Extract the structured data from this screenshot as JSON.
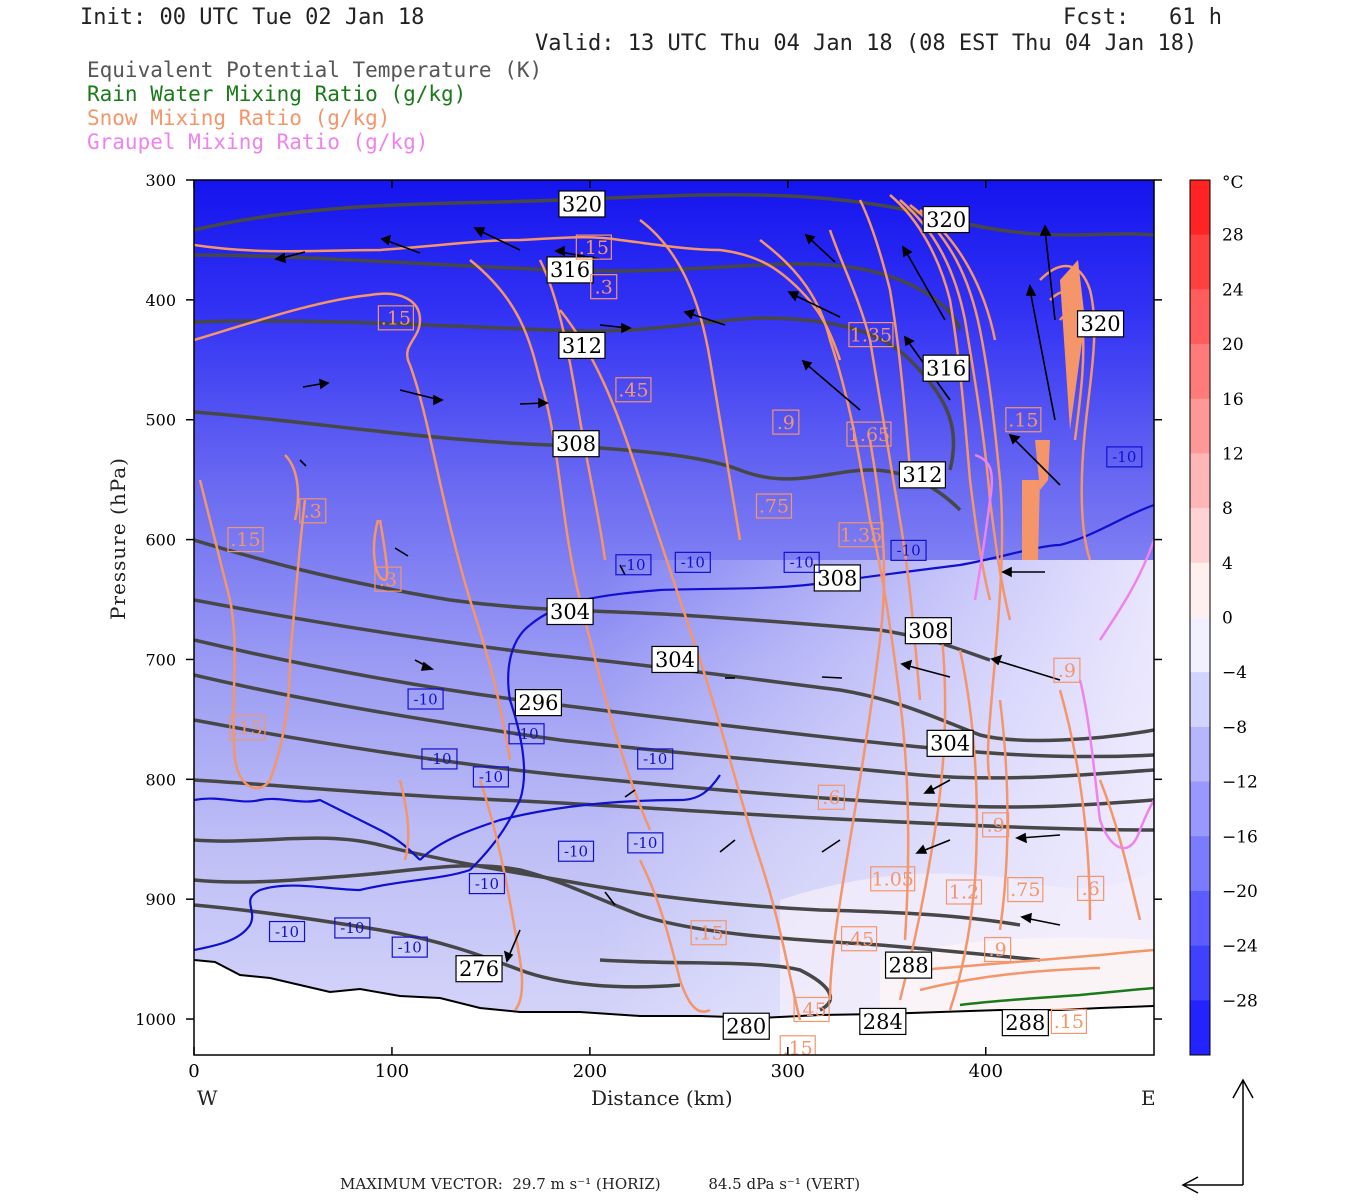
{
  "header": {
    "init": "Init: 00 UTC Tue 02 Jan 18",
    "fcst": "Fcst:   61 h",
    "valid": "Valid: 13 UTC Thu 04 Jan 18 (08 EST Thu 04 Jan 18)"
  },
  "legend": [
    {
      "text": "Equivalent Potential Temperature (K)",
      "color": "#555555"
    },
    {
      "text": "Rain Water Mixing Ratio (g/kg)",
      "color": "#1a7a1a"
    },
    {
      "text": "Snow Mixing Ratio (g/kg)",
      "color": "#f4956a"
    },
    {
      "text": "Graupel Mixing Ratio (g/kg)",
      "color": "#ee82ee"
    }
  ],
  "axes": {
    "ylabel": "Pressure (hPa)",
    "xlabel": "Distance (km)",
    "west": "W",
    "east": "E"
  },
  "colorbar": {
    "unit": "°C",
    "labels": [
      "28",
      "24",
      "20",
      "16",
      "12",
      "8",
      "4",
      "0",
      "−4",
      "−8",
      "−12",
      "−16",
      "−20",
      "−24",
      "−28"
    ]
  },
  "footer": {
    "text": "MAXIMUM VECTOR:  29.7 m s⁻¹ (HORIZ)          84.5 dPa s⁻¹ (VERT)"
  },
  "chart_data": {
    "type": "heatmap",
    "title": "",
    "xlabel": "Distance (km)",
    "ylabel": "Pressure (hPa)",
    "xlim": [
      0,
      485
    ],
    "ylim": [
      1030,
      300
    ],
    "x_ticks": [
      0,
      100,
      200,
      300,
      400
    ],
    "y_ticks": [
      300,
      400,
      500,
      600,
      700,
      800,
      900,
      1000
    ],
    "colorbar": {
      "unit": "°C",
      "range": [
        -32,
        32
      ],
      "interval": 4
    },
    "theta_e_labels": [
      {
        "value": "320",
        "x": 196,
        "p": 320
      },
      {
        "value": "320",
        "x": 380,
        "p": 333
      },
      {
        "value": "320",
        "x": 458,
        "p": 420
      },
      {
        "value": "316",
        "x": 190,
        "p": 375
      },
      {
        "value": "316",
        "x": 380,
        "p": 457
      },
      {
        "value": "312",
        "x": 196,
        "p": 438
      },
      {
        "value": "312",
        "x": 368,
        "p": 546
      },
      {
        "value": "308",
        "x": 193,
        "p": 520
      },
      {
        "value": "308",
        "x": 325,
        "p": 632
      },
      {
        "value": "308",
        "x": 371,
        "p": 676
      },
      {
        "value": "304",
        "x": 190,
        "p": 660
      },
      {
        "value": "304",
        "x": 243,
        "p": 700
      },
      {
        "value": "304",
        "x": 382,
        "p": 770
      },
      {
        "value": "296",
        "x": 174,
        "p": 736
      },
      {
        "value": "276",
        "x": 144,
        "p": 958
      },
      {
        "value": "288",
        "x": 361,
        "p": 955
      },
      {
        "value": "284",
        "x": 348,
        "p": 1002
      },
      {
        "value": "280",
        "x": 279,
        "p": 1006
      },
      {
        "value": "288",
        "x": 420,
        "p": 1003
      }
    ],
    "temperature_labels": [
      {
        "value": "-10",
        "x": 222,
        "p": 621
      },
      {
        "value": "-10",
        "x": 252,
        "p": 619
      },
      {
        "value": "-10",
        "x": 307,
        "p": 619
      },
      {
        "value": "-10",
        "x": 361,
        "p": 609
      },
      {
        "value": "-10",
        "x": 470,
        "p": 531
      },
      {
        "value": "-10",
        "x": 117,
        "p": 733
      },
      {
        "value": "-10",
        "x": 168,
        "p": 762
      },
      {
        "value": "-10",
        "x": 124,
        "p": 783
      },
      {
        "value": "-10",
        "x": 150,
        "p": 798
      },
      {
        "value": "-10",
        "x": 233,
        "p": 783
      },
      {
        "value": "-10",
        "x": 193,
        "p": 860
      },
      {
        "value": "-10",
        "x": 228,
        "p": 853
      },
      {
        "value": "-10",
        "x": 148,
        "p": 887
      },
      {
        "value": "-10",
        "x": 47,
        "p": 927
      },
      {
        "value": "-10",
        "x": 80,
        "p": 924
      },
      {
        "value": "-10",
        "x": 109,
        "p": 940
      }
    ],
    "snow_labels": [
      {
        "value": ".15",
        "x": 202,
        "p": 356
      },
      {
        "value": ".3",
        "x": 207,
        "p": 389
      },
      {
        "value": ".15",
        "x": 102,
        "p": 415
      },
      {
        "value": ".45",
        "x": 222,
        "p": 475
      },
      {
        "value": ".9",
        "x": 299,
        "p": 502
      },
      {
        "value": "1.35",
        "x": 342,
        "p": 429
      },
      {
        "value": "1.65",
        "x": 341,
        "p": 512
      },
      {
        "value": ".3",
        "x": 60,
        "p": 576
      },
      {
        "value": ".15",
        "x": 26,
        "p": 600
      },
      {
        "value": ".3",
        "x": 98,
        "p": 633
      },
      {
        "value": ".15",
        "x": 27,
        "p": 757
      },
      {
        "value": ".75",
        "x": 293,
        "p": 572
      },
      {
        "value": "1.35",
        "x": 337,
        "p": 596
      },
      {
        "value": ".15",
        "x": 419,
        "p": 500
      },
      {
        "value": ".6",
        "x": 322,
        "p": 815
      },
      {
        "value": "1.05",
        "x": 353,
        "p": 883
      },
      {
        "value": "1.2",
        "x": 389,
        "p": 894
      },
      {
        "value": ".75",
        "x": 420,
        "p": 892
      },
      {
        "value": ".6",
        "x": 453,
        "p": 891
      },
      {
        "value": ".15",
        "x": 260,
        "p": 928
      },
      {
        "value": ".45",
        "x": 336,
        "p": 933
      },
      {
        "value": ".45",
        "x": 312,
        "p": 992
      },
      {
        "value": ".15",
        "x": 305,
        "p": 1024
      },
      {
        "value": ".9",
        "x": 406,
        "p": 942
      },
      {
        "value": ".9",
        "x": 441,
        "p": 709
      },
      {
        "value": ".9",
        "x": 405,
        "p": 838
      },
      {
        "value": ".15",
        "x": 442,
        "p": 1002
      }
    ]
  }
}
